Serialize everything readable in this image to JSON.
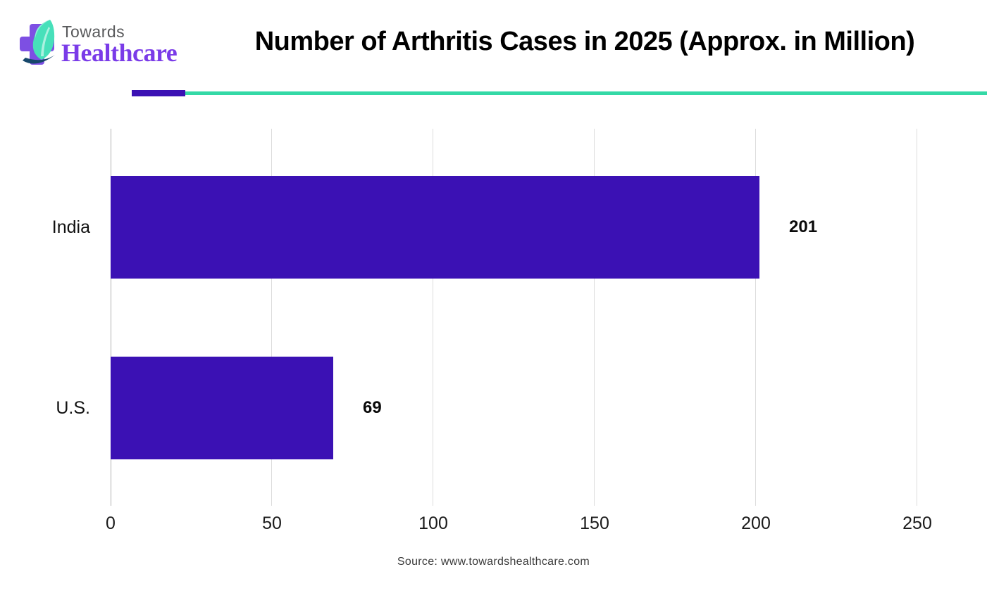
{
  "header": {
    "logo": {
      "brand_top": "Towards",
      "brand_bottom": "Healthcare"
    },
    "title": "Number of Arthritis Cases in 2025 (Approx. in Million)"
  },
  "chart_data": {
    "type": "bar",
    "orientation": "horizontal",
    "title": "Number of Arthritis Cases in 2025 (Approx. in Million)",
    "categories": [
      "India",
      "U.S."
    ],
    "values": [
      201,
      69
    ],
    "value_labels": [
      "201",
      "69"
    ],
    "xlim": [
      0,
      250
    ],
    "xticks": [
      0,
      50,
      100,
      150,
      200,
      250
    ],
    "xlabel": "",
    "ylabel": "",
    "grid": true,
    "legend": "none"
  },
  "footer": {
    "source_text": "Source: www.towardshealthcare.com"
  },
  "colors": {
    "bar": "#3b11b4",
    "divider_purple": "#3b11b4",
    "divider_teal": "#34d9a6",
    "gridline": "#dcdcdc",
    "axis_line": "#b3b3b3",
    "brand_purple": "#7a3be8",
    "brand_gray": "#58595b",
    "cross_purple": "#7d4fe3",
    "leaf_mint": "#47e0ba",
    "leaf_mint_light": "#8bedd8",
    "leaf_swoosh_dark": "#16476b",
    "title_color": "#000000"
  }
}
